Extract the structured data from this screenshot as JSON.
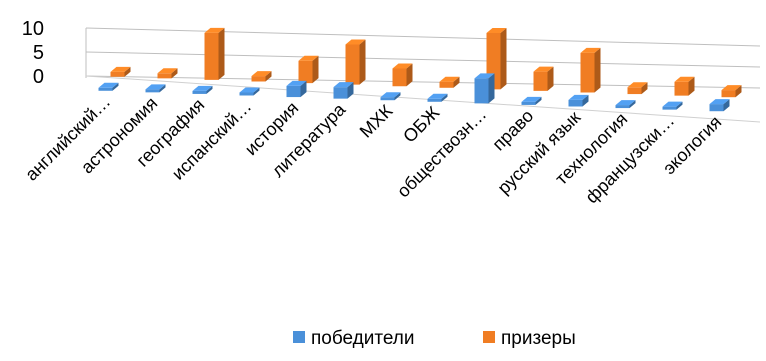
{
  "chart_data": {
    "type": "bar",
    "categories": [
      "английский…",
      "астрономия",
      "география",
      "испанский…",
      "история",
      "литература",
      "МХК",
      "ОБЖ",
      "обществозн…",
      "право",
      "русский язык",
      "технология",
      "французски…",
      "экология"
    ],
    "series": [
      {
        "name": "победители",
        "color": "#4a90d9",
        "values": [
          0,
          0,
          0,
          0,
          2,
          2,
          0,
          0,
          4,
          0,
          1,
          0,
          0,
          1
        ]
      },
      {
        "name": "призеры",
        "color": "#f07d23",
        "values": [
          1,
          1,
          9,
          1,
          4,
          7,
          3,
          1,
          9,
          3,
          6,
          1,
          2,
          1
        ]
      }
    ],
    "yticks": [
      "0",
      "5",
      "10"
    ],
    "ylim": [
      0,
      10
    ],
    "grid": true,
    "legend_position": "bottom",
    "title": "",
    "xlabel": "",
    "ylabel": ""
  }
}
